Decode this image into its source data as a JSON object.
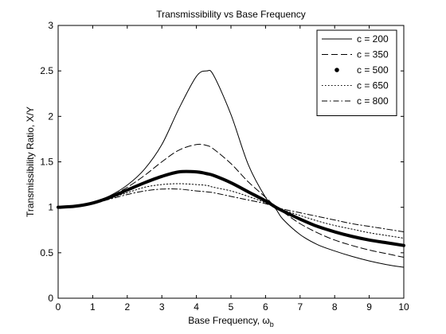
{
  "chart_data": {
    "type": "line",
    "title": "Transmissibility vs Base Frequency",
    "xlabel": "Base Frequency, ω",
    "xlabel_subscript": "b",
    "ylabel": "Transmissibility Ratio, X/Y",
    "xlim": [
      0,
      10
    ],
    "ylim": [
      0,
      3
    ],
    "xticks": [
      "0",
      "1",
      "2",
      "3",
      "4",
      "5",
      "6",
      "7",
      "8",
      "9",
      "10"
    ],
    "yticks": [
      "0",
      "0.5",
      "1",
      "1.5",
      "2",
      "2.5",
      "3"
    ],
    "grid": false,
    "legend_position": "top-right",
    "color": "#000000",
    "x": [
      0,
      0.5,
      1,
      1.5,
      2,
      2.5,
      3,
      3.5,
      4,
      4.3,
      4.5,
      5,
      5.5,
      6,
      6.3,
      6.5,
      7,
      7.5,
      8,
      8.5,
      9,
      9.5,
      10
    ],
    "series": [
      {
        "name": "c = 200",
        "style": "solid",
        "y": [
          1.0,
          1.013,
          1.055,
          1.128,
          1.244,
          1.42,
          1.69,
          2.09,
          2.44,
          2.5,
          2.45,
          2.02,
          1.47,
          1.11,
          0.98,
          0.87,
          0.7,
          0.59,
          0.52,
          0.46,
          0.41,
          0.37,
          0.34
        ]
      },
      {
        "name": "c = 350",
        "style": "dashed",
        "y": [
          1.0,
          1.012,
          1.052,
          1.12,
          1.22,
          1.35,
          1.5,
          1.63,
          1.69,
          1.68,
          1.64,
          1.48,
          1.28,
          1.11,
          1.0,
          0.95,
          0.82,
          0.72,
          0.64,
          0.58,
          0.53,
          0.49,
          0.45
        ]
      },
      {
        "name": "c = 500",
        "style": "thick",
        "y": [
          1.0,
          1.012,
          1.047,
          1.11,
          1.19,
          1.27,
          1.34,
          1.39,
          1.39,
          1.37,
          1.35,
          1.27,
          1.17,
          1.07,
          1.0,
          0.96,
          0.87,
          0.79,
          0.73,
          0.68,
          0.64,
          0.61,
          0.58
        ]
      },
      {
        "name": "c = 650",
        "style": "dotted",
        "y": [
          1.0,
          1.011,
          1.043,
          1.1,
          1.16,
          1.22,
          1.25,
          1.26,
          1.25,
          1.24,
          1.22,
          1.18,
          1.12,
          1.05,
          1.0,
          0.97,
          0.91,
          0.85,
          0.8,
          0.76,
          0.72,
          0.69,
          0.66
        ]
      },
      {
        "name": "c = 800",
        "style": "dashdot",
        "y": [
          1.0,
          1.01,
          1.04,
          1.09,
          1.14,
          1.18,
          1.2,
          1.2,
          1.18,
          1.17,
          1.16,
          1.12,
          1.08,
          1.04,
          1.0,
          0.98,
          0.94,
          0.9,
          0.86,
          0.82,
          0.79,
          0.76,
          0.73
        ]
      }
    ]
  }
}
